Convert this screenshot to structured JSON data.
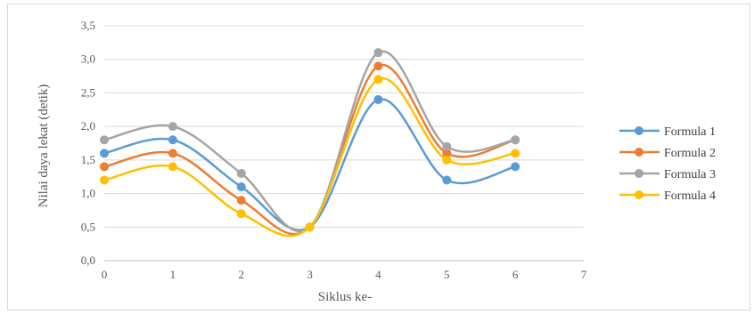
{
  "chart_data": {
    "type": "line",
    "smooth": true,
    "title": "",
    "xlabel": "Siklus ke-",
    "ylabel": "Nilai daya lekat (detik)",
    "xlim": [
      0,
      7
    ],
    "ylim": [
      0.0,
      3.5
    ],
    "x_ticks": [
      "0",
      "1",
      "2",
      "3",
      "4",
      "5",
      "6",
      "7"
    ],
    "y_ticks": [
      "0,0",
      "0,5",
      "1,0",
      "1,5",
      "2,0",
      "2,5",
      "3,0",
      "3,5"
    ],
    "grid": true,
    "legend_position": "right",
    "x": [
      0,
      1,
      2,
      3,
      4,
      5,
      6
    ],
    "series": [
      {
        "name": "Formula 1",
        "color": "#5b9bd5",
        "values": [
          1.6,
          1.8,
          1.1,
          0.5,
          2.4,
          1.2,
          1.4
        ]
      },
      {
        "name": "Formula 2",
        "color": "#ed7d31",
        "values": [
          1.4,
          1.6,
          0.9,
          0.5,
          2.9,
          1.6,
          1.8
        ]
      },
      {
        "name": "Formula 3",
        "color": "#a5a5a5",
        "values": [
          1.8,
          2.0,
          1.3,
          0.5,
          3.1,
          1.7,
          1.8
        ]
      },
      {
        "name": "Formula 4",
        "color": "#ffc000",
        "values": [
          1.2,
          1.4,
          0.7,
          0.5,
          2.7,
          1.5,
          1.6
        ]
      }
    ]
  }
}
